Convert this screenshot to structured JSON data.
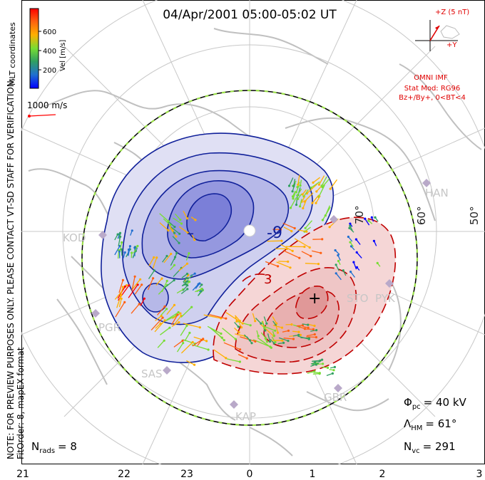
{
  "title": "04/Apr/2001 05:00-05:02 UT",
  "velocity_scale": {
    "unit_label": "Vel [m/s]",
    "tick_labels": [
      "600",
      "400",
      "200"
    ],
    "colors": [
      "#0000ff",
      "#1f6fd0",
      "#30a060",
      "#77dd33",
      "#ffb000",
      "#ff6010",
      "#ff0000"
    ]
  },
  "coordinate_label": "MLT coordinates",
  "vector_reference": "1000 m/s",
  "imf": {
    "scale_label": "+Z (5 nT)",
    "y_label": "+Y",
    "source": "OMNI IMF",
    "model": "Stat Mod: RG96",
    "condition": "Bz+/By+, 0<BT<4",
    "color": "#e00000"
  },
  "contour_labels": {
    "negative_value": "-9",
    "negative_sign": "–",
    "positive_sign": "+",
    "positive_value": "3",
    "negative_color": "#10209a",
    "positive_color": "#c00000"
  },
  "latitude_labels": [
    "70°",
    "60°",
    "50°"
  ],
  "stations": [
    "KOD",
    "HAN",
    "STO",
    "PYK",
    "PGR",
    "SAS",
    "KAP",
    "GBR"
  ],
  "mlt_axis": [
    "21",
    "22",
    "23",
    "0",
    "1",
    "2",
    "3"
  ],
  "stats": {
    "phi_symbol": "Φ",
    "phi_sub": "pc",
    "phi_value": "= 40 kV",
    "lambda_symbol": "Λ",
    "lambda_sub": "HM",
    "lambda_value": "= 61°",
    "nvc_symbol": "N",
    "nvc_sub": "vc",
    "nvc_value": "= 291",
    "nrads_symbol": "N",
    "nrads_sub": "rads",
    "nrads_value": "= 8"
  },
  "side_notes": {
    "preview_notice": "NOTE: FOR PREVIEW PURPOSES ONLY. PLEASE CONTACT VT-SD STAFF FOR VERIFICATION.",
    "fit_info": "FitOrder: 8, mapEX format"
  }
}
